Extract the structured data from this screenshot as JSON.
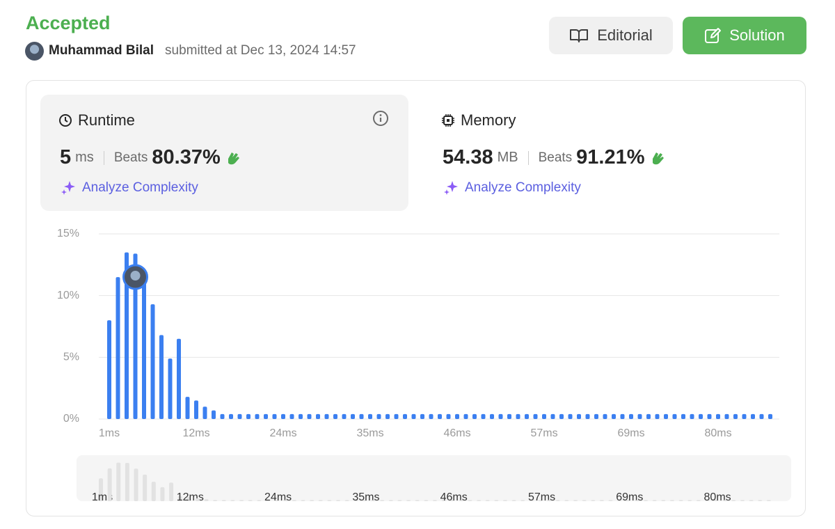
{
  "header": {
    "status": "Accepted",
    "user": "Muhammad Bilal",
    "submitted": "submitted at Dec 13, 2024 14:57",
    "editorial": "Editorial",
    "solution": "Solution"
  },
  "runtime": {
    "title": "Runtime",
    "value": "5",
    "unit": "ms",
    "beats_label": "Beats",
    "beats": "80.37%",
    "analyze": "Analyze Complexity"
  },
  "memory": {
    "title": "Memory",
    "value": "54.38",
    "unit": "MB",
    "beats_label": "Beats",
    "beats": "91.21%",
    "analyze": "Analyze Complexity"
  },
  "chart_data": {
    "type": "bar",
    "color": "#3b7ff0",
    "grid": true,
    "categories": [
      "1ms",
      null,
      null,
      null,
      null,
      null,
      null,
      null,
      null,
      null,
      "12ms",
      null,
      null,
      null,
      null,
      null,
      null,
      null,
      null,
      null,
      "24ms",
      null,
      null,
      null,
      null,
      null,
      null,
      null,
      null,
      null,
      "35ms",
      null,
      null,
      null,
      null,
      null,
      null,
      null,
      null,
      null,
      "46ms",
      null,
      null,
      null,
      null,
      null,
      null,
      null,
      null,
      null,
      "57ms",
      null,
      null,
      null,
      null,
      null,
      null,
      null,
      null,
      null,
      "69ms",
      null,
      null,
      null,
      null,
      null,
      null,
      null,
      null,
      null,
      "80ms",
      null,
      null,
      null,
      null,
      null,
      null
    ],
    "values": [
      8.0,
      11.5,
      13.5,
      13.4,
      11.4,
      9.3,
      6.8,
      4.9,
      6.5,
      1.8,
      1.5,
      1.0,
      0.7,
      0.4,
      0.4,
      0.4,
      0.4,
      0.4,
      0.4,
      0.4,
      0.4,
      0.4,
      0.4,
      0.4,
      0.4,
      0.4,
      0.4,
      0.4,
      0.4,
      0.4,
      0.4,
      0.4,
      0.4,
      0.4,
      0.4,
      0.4,
      0.4,
      0.4,
      0.4,
      0.4,
      0.4,
      0.4,
      0.4,
      0.4,
      0.4,
      0.4,
      0.4,
      0.4,
      0.4,
      0.4,
      0.4,
      0.4,
      0.4,
      0.4,
      0.4,
      0.4,
      0.4,
      0.4,
      0.4,
      0.4,
      0.4,
      0.4,
      0.4,
      0.4,
      0.4,
      0.4,
      0.4,
      0.4,
      0.4,
      0.4,
      0.4,
      0.4,
      0.4,
      0.4,
      0.4,
      0.4,
      0.4
    ],
    "ylim": [
      0,
      15
    ],
    "yticks": [
      {
        "value": 0,
        "label": "0%"
      },
      {
        "value": 5,
        "label": "5%"
      },
      {
        "value": 10,
        "label": "10%"
      },
      {
        "value": 15,
        "label": "15%"
      }
    ]
  }
}
